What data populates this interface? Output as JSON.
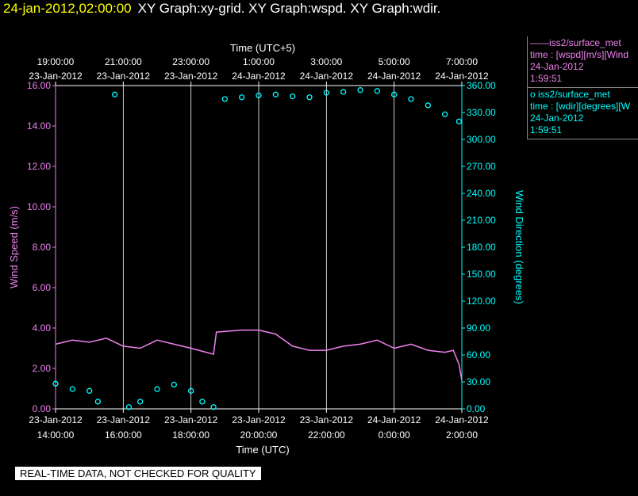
{
  "header": {
    "timestamp": "24-jan-2012,02:00:00",
    "graphs": "XY Graph:xy-grid.  XY Graph:wspd.  XY Graph:wdir."
  },
  "legend": [
    {
      "line1": "iss2/surface_met",
      "line2": "time : [wspd][m/s][Wind",
      "line3": "24-Jan-2012",
      "line4": "1:59:51",
      "color": "#ee82ee",
      "marker": "line"
    },
    {
      "line1": "iss2/surface_met",
      "line2": "time : [wdir][degrees][W",
      "line3": "24-Jan-2012",
      "line4": "1:59:51",
      "color": "#00ffff",
      "marker": "circle"
    }
  ],
  "footer_note": "REAL-TIME DATA, NOT CHECKED FOR QUALITY",
  "chart_data": {
    "type": "scatter",
    "top_axis_title": "Time (UTC+5)",
    "bottom_axis_title": "Time (UTC)",
    "top_ticks": [
      {
        "time": "19:00:00",
        "date": "23-Jan-2012"
      },
      {
        "time": "21:00:00",
        "date": "23-Jan-2012"
      },
      {
        "time": "23:00:00",
        "date": "23-Jan-2012"
      },
      {
        "time": "1:00:00",
        "date": "24-Jan-2012"
      },
      {
        "time": "3:00:00",
        "date": "24-Jan-2012"
      },
      {
        "time": "5:00:00",
        "date": "24-Jan-2012"
      },
      {
        "time": "7:00:00",
        "date": "24-Jan-2012"
      }
    ],
    "bottom_ticks": [
      {
        "date": "23-Jan-2012",
        "time": "14:00:00"
      },
      {
        "date": "23-Jan-2012",
        "time": "16:00:00"
      },
      {
        "date": "23-Jan-2012",
        "time": "18:00:00"
      },
      {
        "date": "23-Jan-2012",
        "time": "20:00:00"
      },
      {
        "date": "23-Jan-2012",
        "time": "22:00:00"
      },
      {
        "date": "24-Jan-2012",
        "time": "0:00:00"
      },
      {
        "date": "24-Jan-2012",
        "time": "2:00:00"
      }
    ],
    "xlim": [
      "2012-01-23 14:00",
      "2012-01-24 02:00"
    ],
    "grid": "vertical",
    "left_axis": {
      "label": "Wind Speed (m/s)",
      "ylim": [
        0,
        16
      ],
      "ticks": [
        "0.00",
        "2.00",
        "4.00",
        "6.00",
        "8.00",
        "10.00",
        "12.00",
        "14.00",
        "16.00"
      ]
    },
    "right_axis": {
      "label": "Wind Direction (degrees)",
      "ylim": [
        0,
        360
      ],
      "ticks": [
        "0.00",
        "30.00",
        "60.00",
        "90.00",
        "120.00",
        "150.00",
        "180.00",
        "210.00",
        "240.00",
        "270.00",
        "300.00",
        "330.00",
        "360.00"
      ]
    },
    "series": [
      {
        "name": "wspd",
        "axis": "left",
        "color": "#ee82ee",
        "style": "line",
        "x": [
          "2012-01-23 14:00",
          "2012-01-23 14:30",
          "2012-01-23 15:00",
          "2012-01-23 15:30",
          "2012-01-23 16:00",
          "2012-01-23 16:30",
          "2012-01-23 17:00",
          "2012-01-23 17:30",
          "2012-01-23 18:00",
          "2012-01-23 18:40",
          "2012-01-23 18:45",
          "2012-01-23 19:30",
          "2012-01-23 20:00",
          "2012-01-23 20:30",
          "2012-01-23 21:00",
          "2012-01-23 21:30",
          "2012-01-23 22:00",
          "2012-01-23 22:30",
          "2012-01-23 23:00",
          "2012-01-23 23:30",
          "2012-01-24 00:00",
          "2012-01-24 00:30",
          "2012-01-24 01:00",
          "2012-01-24 01:30",
          "2012-01-24 01:45",
          "2012-01-24 01:55",
          "2012-01-24 02:00"
        ],
        "y": [
          3.2,
          3.4,
          3.3,
          3.5,
          3.1,
          3.0,
          3.4,
          3.2,
          3.0,
          2.7,
          3.8,
          3.9,
          3.9,
          3.7,
          3.1,
          2.9,
          2.9,
          3.1,
          3.2,
          3.4,
          3.0,
          3.2,
          2.9,
          2.8,
          2.9,
          2.2,
          1.4
        ]
      },
      {
        "name": "wdir",
        "axis": "right",
        "color": "#00ffff",
        "style": "circles",
        "x": [
          "2012-01-23 14:00",
          "2012-01-23 14:30",
          "2012-01-23 15:00",
          "2012-01-23 15:15",
          "2012-01-23 15:45",
          "2012-01-23 16:10",
          "2012-01-23 16:30",
          "2012-01-23 17:00",
          "2012-01-23 17:30",
          "2012-01-23 18:00",
          "2012-01-23 18:20",
          "2012-01-23 18:40",
          "2012-01-23 19:00",
          "2012-01-23 19:30",
          "2012-01-23 20:00",
          "2012-01-23 20:30",
          "2012-01-23 21:00",
          "2012-01-23 21:30",
          "2012-01-23 22:00",
          "2012-01-23 22:30",
          "2012-01-23 23:00",
          "2012-01-23 23:30",
          "2012-01-24 00:00",
          "2012-01-24 00:30",
          "2012-01-24 01:00",
          "2012-01-24 01:30",
          "2012-01-24 01:55"
        ],
        "y": [
          28,
          22,
          20,
          8,
          350,
          2,
          8,
          22,
          27,
          20,
          8,
          2,
          345,
          347,
          349,
          350,
          348,
          347,
          352,
          353,
          355,
          354,
          350,
          345,
          338,
          328,
          320
        ]
      }
    ]
  }
}
